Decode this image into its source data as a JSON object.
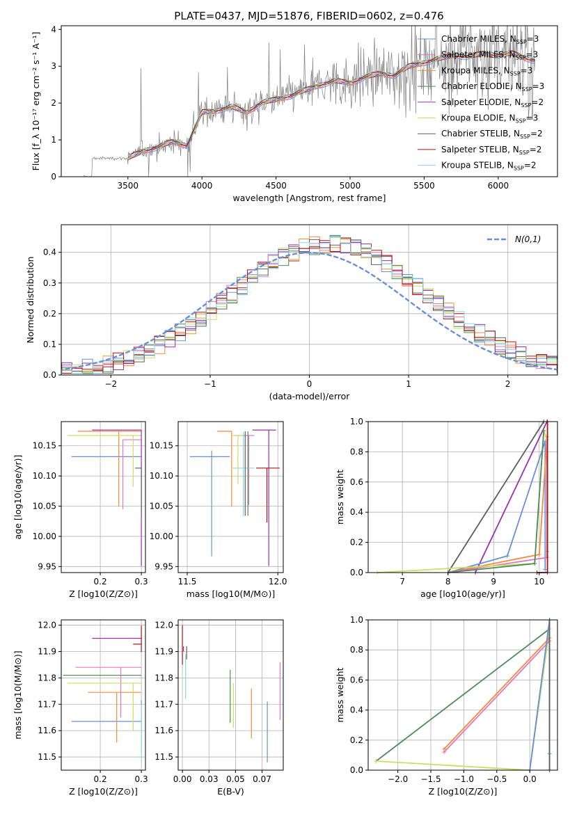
{
  "figure": {
    "title": "PLATE=0437, MJD=51876, FIBERID=0602, z=0.476"
  },
  "legend_colors": [
    "#6a8fd8",
    "#e377c2",
    "#f58a3a",
    "#4f8a5a",
    "#9a2fb0",
    "#c8e060",
    "#606060",
    "#b01010",
    "#8ad8e0"
  ],
  "chart_data": [
    {
      "id": "spectrum",
      "type": "line",
      "xlabel": "wavelength [Angstrom, rest frame]",
      "ylabel": "Flux [f_λ 10⁻¹⁷ erg cm⁻² s⁻¹ A⁻¹]",
      "xlim": [
        3050,
        6400
      ],
      "ylim": [
        0,
        4.1
      ],
      "xticks": [
        3500,
        4000,
        4500,
        5000,
        5500,
        6000
      ],
      "yticks": [
        0,
        1,
        2,
        3,
        4
      ],
      "grid": false,
      "legend": {
        "position": "upper-right",
        "entries": [
          {
            "label": "Chabrier MILES, N",
            "sub": "SSP",
            "suffix": "=3",
            "color": "#6a8fd8"
          },
          {
            "label": "Salpeter MILES, N",
            "sub": "SSP",
            "suffix": "=3",
            "color": "#e377c2"
          },
          {
            "label": "Kroupa MILES, N",
            "sub": "SSP",
            "suffix": "=3",
            "color": "#f58a3a"
          },
          {
            "label": "Chabrier ELODIE, N",
            "sub": "SSP",
            "suffix": "=3",
            "color": "#4f8a5a"
          },
          {
            "label": "Salpeter ELODIE, N",
            "sub": "SSP",
            "suffix": "=2",
            "color": "#9a2fb0"
          },
          {
            "label": "Kroupa ELODIE, N",
            "sub": "SSP",
            "suffix": "=3",
            "color": "#c8e060"
          },
          {
            "label": "Chabrier STELIB, N",
            "sub": "SSP",
            "suffix": "=2",
            "color": "#606060"
          },
          {
            "label": "Salpeter STELIB, N",
            "sub": "SSP",
            "suffix": "=2",
            "color": "#b01010"
          },
          {
            "label": "Kroupa STELIB, N",
            "sub": "SSP",
            "suffix": "=2",
            "color": "#8ad8e0"
          }
        ]
      },
      "data_color": "#808080",
      "data_range": [
        3200,
        6250
      ],
      "model_x": [
        3500,
        3600,
        3700,
        3800,
        3900,
        4000,
        4100,
        4200,
        4300,
        4400,
        4500,
        4600,
        4700,
        4800,
        4900,
        5000,
        5100,
        5200,
        5300,
        5400,
        5500,
        5600,
        5700,
        5800,
        5900,
        6000,
        6100,
        6200,
        6250
      ],
      "model_y": [
        0.5,
        0.7,
        0.8,
        0.95,
        0.85,
        1.75,
        1.8,
        1.9,
        1.75,
        2.0,
        2.1,
        2.2,
        2.35,
        2.5,
        2.6,
        2.55,
        2.7,
        2.8,
        2.75,
        3.0,
        3.1,
        3.2,
        3.3,
        3.25,
        3.35,
        3.3,
        3.35,
        3.2,
        3.15
      ]
    },
    {
      "id": "residuals",
      "type": "histogram",
      "xlabel": "(data-model)/error",
      "ylabel": "Normed distribution",
      "xlim": [
        -2.5,
        2.5
      ],
      "ylim": [
        0,
        0.49
      ],
      "xticks": [
        -2,
        -1,
        0,
        1,
        2
      ],
      "yticks": [
        0.0,
        0.1,
        0.2,
        0.3,
        0.4
      ],
      "grid": true,
      "legend": {
        "position": "upper-right",
        "entries": [
          {
            "label": "N(0,1)",
            "color": "#6a8fd8",
            "style": "dashed"
          }
        ]
      },
      "reference_curve": "normal(0,1)"
    },
    {
      "id": "age-vs-Z",
      "type": "errorbar",
      "xlabel": "Z [log10(Z/Z⊙)]",
      "ylabel": "age [log10(age/yr)]",
      "xlim": [
        0.105,
        0.31
      ],
      "ylim": [
        9.94,
        10.19
      ],
      "xticks": [
        0.2,
        0.3
      ],
      "yticks": [
        9.95,
        10.0,
        10.05,
        10.1,
        10.15
      ],
      "grid": true,
      "points": [
        {
          "x": 0.3,
          "y": 10.132,
          "xerr": [
            0.17,
            0.0
          ],
          "yerr": [
            0.0,
            0.0
          ],
          "color": "#6a8fd8"
        },
        {
          "x": 0.245,
          "y": 10.174,
          "xerr": [
            0.1,
            0.055
          ],
          "yerr": [
            0.125,
            0.0
          ],
          "color": "#f58a3a"
        },
        {
          "x": 0.255,
          "y": 10.16,
          "xerr": [
            0.0,
            0.045
          ],
          "yerr": [
            0.115,
            0.0
          ],
          "color": "#e377c2"
        },
        {
          "x": 0.28,
          "y": 10.167,
          "xerr": [
            0.16,
            0.02
          ],
          "yerr": [
            0.085,
            0.0
          ],
          "color": "#c8e060"
        },
        {
          "x": 0.3,
          "y": 10.176,
          "xerr": [
            0.12,
            0.0
          ],
          "yerr": [
            0.225,
            0.0
          ],
          "color": "#9a2fb0"
        },
        {
          "x": 0.3,
          "y": 10.113,
          "xerr": [
            0.015,
            0.0
          ],
          "yerr": [
            0.08,
            0.0
          ],
          "color": "#606060"
        },
        {
          "x": 0.3,
          "y": 10.176,
          "xerr": [
            0.0,
            0.0
          ],
          "yerr": [
            0.0,
            0.0
          ],
          "color": "#b01010"
        }
      ]
    },
    {
      "id": "age-vs-mass",
      "type": "errorbar",
      "xlabel": "mass [log10(M/M⊙)]",
      "ylabel": "",
      "xlim": [
        11.45,
        12.03
      ],
      "ylim": [
        9.94,
        10.19
      ],
      "xticks": [
        11.5,
        12.0
      ],
      "yticks": [
        9.95,
        10.0,
        10.05,
        10.1,
        10.15
      ],
      "grid": true,
      "points": [
        {
          "x": 11.635,
          "y": 10.132,
          "xerr": [
            0.12,
            0.1
          ],
          "yerr": [
            0.165,
            0.01
          ],
          "color": "#6a8fd8"
        },
        {
          "x": 11.745,
          "y": 10.174,
          "xerr": [
            0.08,
            0.0
          ],
          "yerr": [
            0.125,
            0.0
          ],
          "color": "#f58a3a"
        },
        {
          "x": 11.84,
          "y": 10.167,
          "xerr": [
            0.08,
            0.03
          ],
          "yerr": [
            0.115,
            0.0
          ],
          "color": "#e377c2"
        },
        {
          "x": 11.78,
          "y": 10.167,
          "xerr": [
            0.03,
            0.03
          ],
          "yerr": [
            0.08,
            0.0
          ],
          "color": "#c8e060"
        },
        {
          "x": 11.81,
          "y": 10.113,
          "xerr": [
            0.06,
            0.06
          ],
          "yerr": [
            0.08,
            0.06
          ],
          "color": "#8ad8e0"
        },
        {
          "x": 11.95,
          "y": 10.176,
          "xerr": [
            0.09,
            0.04
          ],
          "yerr": [
            0.225,
            0.0
          ],
          "color": "#9a2fb0"
        },
        {
          "x": 11.94,
          "y": 10.113,
          "xerr": [
            0.06,
            0.07
          ],
          "yerr": [
            0.09,
            0.0
          ],
          "color": "#b01010"
        },
        {
          "x": 11.835,
          "y": 10.174,
          "xerr": [
            0.0,
            0.0
          ],
          "yerr": [
            0.14,
            0.0
          ],
          "color": "#4f8a5a"
        },
        {
          "x": 11.82,
          "y": 10.174,
          "xerr": [
            0.0,
            0.0
          ],
          "yerr": [
            0.14,
            0.0
          ],
          "color": "#606060"
        }
      ]
    },
    {
      "id": "weight-vs-age",
      "type": "line",
      "xlabel": "age [log10(age/yr)]",
      "ylabel": "mass weight",
      "xlim": [
        6.25,
        10.4
      ],
      "ylim": [
        0,
        1.0
      ],
      "xticks": [
        7,
        8,
        9,
        10
      ],
      "yticks": [
        0.0,
        0.2,
        0.4,
        0.6,
        0.8,
        1.0
      ],
      "grid": true,
      "series": [
        {
          "color": "#8ad8e0",
          "x": [
            8.0,
            10.1
          ],
          "y": [
            0.0,
            1.0
          ]
        },
        {
          "color": "#606060",
          "x": [
            8.0,
            10.1
          ],
          "y": [
            0.0,
            1.0
          ]
        },
        {
          "color": "#9a2fb0",
          "x": [
            8.6,
            10.17
          ],
          "y": [
            0.0,
            1.0
          ]
        },
        {
          "color": "#6a8fd8",
          "x": [
            8.0,
            9.3,
            10.13,
            10.13
          ],
          "y": [
            0.0,
            0.11,
            0.87,
            0.02
          ]
        },
        {
          "color": "#f58a3a",
          "x": [
            8.0,
            10.0,
            10.17,
            10.17
          ],
          "y": [
            0.0,
            0.12,
            0.88,
            0.14
          ]
        },
        {
          "color": "#e377c2",
          "x": [
            8.0,
            10.17,
            10.17
          ],
          "y": [
            0.0,
            0.1,
            0.9
          ]
        },
        {
          "color": "#c8e060",
          "x": [
            6.45,
            9.9,
            10.1,
            10.17
          ],
          "y": [
            0.0,
            0.06,
            0.94,
            0.88
          ]
        },
        {
          "color": "#4f8a5a",
          "x": [
            8.0,
            9.9,
            10.1
          ],
          "y": [
            0.0,
            0.06,
            0.94
          ]
        },
        {
          "color": "#b01010",
          "x": [
            9.95,
            10.18,
            10.18
          ],
          "y": [
            0.0,
            0.0,
            1.0
          ]
        }
      ]
    },
    {
      "id": "mass-vs-Z",
      "type": "errorbar",
      "xlabel": "Z [log10(Z/Z⊙)]",
      "ylabel": "mass [log10(M/M⊙)]",
      "xlim": [
        0.105,
        0.31
      ],
      "ylim": [
        11.45,
        12.02
      ],
      "xticks": [
        0.2,
        0.3
      ],
      "yticks": [
        11.5,
        11.6,
        11.7,
        11.8,
        11.9,
        12.0
      ],
      "grid": true,
      "points": [
        {
          "x": 0.3,
          "y": 11.635,
          "xerr": [
            0.17,
            0.0
          ],
          "yerr": [
            0.12,
            0.08
          ],
          "color": "#6a8fd8"
        },
        {
          "x": 0.24,
          "y": 11.745,
          "xerr": [
            0.07,
            0.06
          ],
          "yerr": [
            0.19,
            0.0
          ],
          "color": "#f58a3a"
        },
        {
          "x": 0.25,
          "y": 11.84,
          "xerr": [
            0.11,
            0.05
          ],
          "yerr": [
            0.19,
            0.0
          ],
          "color": "#e377c2"
        },
        {
          "x": 0.28,
          "y": 11.78,
          "xerr": [
            0.16,
            0.02
          ],
          "yerr": [
            0.18,
            0.0
          ],
          "color": "#c8e060"
        },
        {
          "x": 0.3,
          "y": 11.81,
          "xerr": [
            0.19,
            0.0
          ],
          "yerr": [
            0.0,
            0.0
          ],
          "color": "#4f8a5a"
        },
        {
          "x": 0.3,
          "y": 11.95,
          "xerr": [
            0.12,
            0.0
          ],
          "yerr": [
            0.0,
            0.0
          ],
          "color": "#9a2fb0"
        },
        {
          "x": 0.3,
          "y": 11.928,
          "xerr": [
            0.02,
            0.0
          ],
          "yerr": [
            0.03,
            0.07
          ],
          "color": "#b01010"
        },
        {
          "x": 0.3,
          "y": 11.84,
          "xerr": [
            0.0,
            0.0
          ],
          "yerr": [
            0.0,
            0.0
          ],
          "color": "#606060"
        },
        {
          "x": 0.3,
          "y": 11.6,
          "xerr": [
            0.0,
            0.0
          ],
          "yerr": [
            0.12,
            0.1
          ],
          "color": "#8ad8e0"
        }
      ]
    },
    {
      "id": "mass-vs-ebv",
      "type": "errorbar",
      "xlabel": "E(B-V)",
      "ylabel": "",
      "xlim": [
        -0.004,
        0.095
      ],
      "ylim": [
        11.45,
        12.02
      ],
      "xticks": [
        0.0,
        0.025,
        0.05,
        0.075
      ],
      "yticks": [
        11.5,
        11.6,
        11.7,
        11.8,
        11.9,
        12.0
      ],
      "grid": true,
      "points": [
        {
          "x": 0.0,
          "y": 11.85,
          "xerr": [
            0.0,
            0.0
          ],
          "yerr": [
            0.0,
            0.15
          ],
          "color": "#b01010"
        },
        {
          "x": 0.001,
          "y": 11.9,
          "xerr": [
            0.0,
            0.0
          ],
          "yerr": [
            0.0,
            0.02
          ],
          "color": "#9a2fb0"
        },
        {
          "x": 0.003,
          "y": 11.8,
          "xerr": [
            0.0,
            0.0
          ],
          "yerr": [
            0.08,
            0.09
          ],
          "color": "#8ad8e0"
        },
        {
          "x": 0.004,
          "y": 11.87,
          "xerr": [
            0.0,
            0.0
          ],
          "yerr": [
            0.0,
            0.05
          ],
          "color": "#606060"
        },
        {
          "x": 0.045,
          "y": 11.75,
          "xerr": [
            0.0,
            0.0
          ],
          "yerr": [
            0.12,
            0.08
          ],
          "color": "#4f8a5a"
        },
        {
          "x": 0.048,
          "y": 11.7,
          "xerr": [
            0.0,
            0.0
          ],
          "yerr": [
            0.09,
            0.08
          ],
          "color": "#c8e060"
        },
        {
          "x": 0.065,
          "y": 11.67,
          "xerr": [
            0.0,
            0.0
          ],
          "yerr": [
            0.1,
            0.09
          ],
          "color": "#f58a3a"
        },
        {
          "x": 0.08,
          "y": 11.61,
          "xerr": [
            0.0,
            0.0
          ],
          "yerr": [
            0.13,
            0.1
          ],
          "color": "#6a8fd8"
        },
        {
          "x": 0.092,
          "y": 11.75,
          "xerr": [
            0.0,
            0.0
          ],
          "yerr": [
            0.11,
            0.11
          ],
          "color": "#e377c2"
        }
      ]
    },
    {
      "id": "weight-vs-Z",
      "type": "line",
      "xlabel": "Z [log10(Z/Z⊙)]",
      "ylabel": "mass weight",
      "xlim": [
        -2.45,
        0.42
      ],
      "ylim": [
        0,
        1.0
      ],
      "xticks": [
        -2.0,
        -1.5,
        -1.0,
        -0.5,
        0.0
      ],
      "yticks": [
        0.0,
        0.2,
        0.4,
        0.6,
        0.8,
        1.0
      ],
      "grid": true,
      "series": [
        {
          "color": "#4f8a5a",
          "x": [
            -2.33,
            0.3,
            0.3
          ],
          "y": [
            0.06,
            0.94,
            0.0
          ]
        },
        {
          "color": "#c8e060",
          "x": [
            -2.33,
            0.0,
            0.3,
            0.3
          ],
          "y": [
            0.06,
            0.0,
            0.94,
            0.0
          ]
        },
        {
          "color": "#f58a3a",
          "x": [
            -1.3,
            0.3,
            0.3
          ],
          "y": [
            0.14,
            0.88,
            0.0
          ]
        },
        {
          "color": "#e377c2",
          "x": [
            -1.3,
            0.3,
            0.3
          ],
          "y": [
            0.12,
            0.86,
            0.0
          ]
        },
        {
          "color": "#8ad8e0",
          "x": [
            0.0,
            0.3,
            0.3
          ],
          "y": [
            0.0,
            1.0,
            0.0
          ]
        },
        {
          "color": "#6a8fd8",
          "x": [
            0.0,
            0.3,
            0.3
          ],
          "y": [
            0.0,
            1.0,
            0.11
          ]
        },
        {
          "color": "#606060",
          "x": [
            0.3,
            0.3
          ],
          "y": [
            0.0,
            1.0
          ]
        }
      ]
    }
  ]
}
